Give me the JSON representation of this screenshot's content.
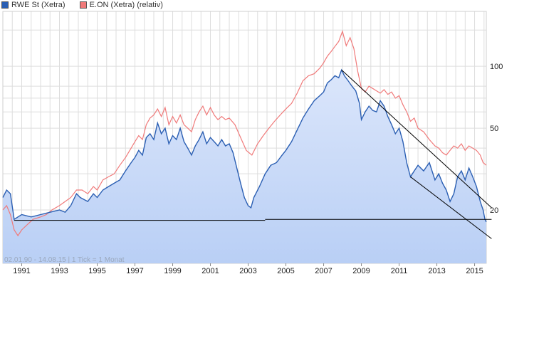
{
  "legend": {
    "series1_label": "RWE St (Xetra)",
    "series2_label": "E.ON (Xetra) (relativ)"
  },
  "footnote": "02.01.90 - 14.08.15  |  1 Tick = 1 Monat",
  "colors": {
    "rwe_line": "#2b5fb3",
    "rwe_fill_top": "#dbe6fb",
    "rwe_fill_bottom": "#b9cff5",
    "eon_line": "#f07a7a",
    "grid": "#dddddd",
    "trend": "#000000"
  },
  "chart_data": {
    "type": "line",
    "title": "",
    "xlabel": "",
    "ylabel": "",
    "y_scale": "log",
    "xlim": [
      1990.0,
      2015.62
    ],
    "ylim": [
      11,
      185
    ],
    "x_ticks": [
      "1991",
      "1993",
      "1995",
      "1997",
      "1999",
      "2001",
      "2003",
      "2005",
      "2007",
      "2009",
      "2011",
      "2013",
      "2015"
    ],
    "y_ticks": [
      {
        "value": 100,
        "label": "100"
      },
      {
        "value": 50,
        "label": "50"
      },
      {
        "value": 20,
        "label": "20"
      }
    ],
    "grid": true,
    "legend_position": "top-left",
    "series": [
      {
        "name": "RWE St (Xetra)",
        "points": [
          [
            1990.0,
            23
          ],
          [
            1990.2,
            25
          ],
          [
            1990.4,
            24
          ],
          [
            1990.6,
            18
          ],
          [
            1990.8,
            18.5
          ],
          [
            1991.0,
            19
          ],
          [
            1991.5,
            18.5
          ],
          [
            1992.0,
            19
          ],
          [
            1992.5,
            19.5
          ],
          [
            1993.0,
            20
          ],
          [
            1993.3,
            19.5
          ],
          [
            1993.6,
            21
          ],
          [
            1993.9,
            24
          ],
          [
            1994.1,
            23
          ],
          [
            1994.5,
            22
          ],
          [
            1994.8,
            24
          ],
          [
            1995.0,
            23
          ],
          [
            1995.3,
            25
          ],
          [
            1995.6,
            26
          ],
          [
            1995.9,
            27
          ],
          [
            1996.2,
            28
          ],
          [
            1996.5,
            31
          ],
          [
            1996.8,
            34
          ],
          [
            1997.0,
            36
          ],
          [
            1997.2,
            39
          ],
          [
            1997.4,
            37
          ],
          [
            1997.6,
            45
          ],
          [
            1997.8,
            47
          ],
          [
            1998.0,
            44
          ],
          [
            1998.2,
            53
          ],
          [
            1998.4,
            47
          ],
          [
            1998.6,
            50
          ],
          [
            1998.8,
            42
          ],
          [
            1999.0,
            46
          ],
          [
            1999.2,
            44
          ],
          [
            1999.4,
            50
          ],
          [
            1999.6,
            43
          ],
          [
            1999.8,
            40
          ],
          [
            2000.0,
            37
          ],
          [
            2000.2,
            41
          ],
          [
            2000.4,
            44
          ],
          [
            2000.6,
            48
          ],
          [
            2000.8,
            42
          ],
          [
            2001.0,
            45
          ],
          [
            2001.2,
            43
          ],
          [
            2001.4,
            41
          ],
          [
            2001.6,
            44
          ],
          [
            2001.8,
            41
          ],
          [
            2002.0,
            42
          ],
          [
            2002.2,
            38
          ],
          [
            2002.4,
            32
          ],
          [
            2002.6,
            27
          ],
          [
            2002.8,
            23
          ],
          [
            2003.0,
            21
          ],
          [
            2003.15,
            20.5
          ],
          [
            2003.3,
            23
          ],
          [
            2003.6,
            26
          ],
          [
            2003.9,
            30
          ],
          [
            2004.2,
            33
          ],
          [
            2004.5,
            34
          ],
          [
            2004.8,
            37
          ],
          [
            2005.0,
            39
          ],
          [
            2005.3,
            43
          ],
          [
            2005.6,
            49
          ],
          [
            2005.9,
            56
          ],
          [
            2006.2,
            62
          ],
          [
            2006.5,
            68
          ],
          [
            2006.8,
            72
          ],
          [
            2007.0,
            75
          ],
          [
            2007.2,
            83
          ],
          [
            2007.4,
            86
          ],
          [
            2007.6,
            90
          ],
          [
            2007.8,
            88
          ],
          [
            2007.95,
            96
          ],
          [
            2008.1,
            90
          ],
          [
            2008.3,
            85
          ],
          [
            2008.5,
            80
          ],
          [
            2008.7,
            76
          ],
          [
            2008.9,
            66
          ],
          [
            2009.0,
            55
          ],
          [
            2009.2,
            60
          ],
          [
            2009.4,
            64
          ],
          [
            2009.6,
            61
          ],
          [
            2009.8,
            60
          ],
          [
            2010.0,
            68
          ],
          [
            2010.2,
            64
          ],
          [
            2010.4,
            57
          ],
          [
            2010.6,
            52
          ],
          [
            2010.8,
            47
          ],
          [
            2011.0,
            50
          ],
          [
            2011.2,
            43
          ],
          [
            2011.4,
            34
          ],
          [
            2011.6,
            29
          ],
          [
            2011.8,
            31
          ],
          [
            2012.0,
            33
          ],
          [
            2012.3,
            31
          ],
          [
            2012.6,
            34
          ],
          [
            2012.9,
            28
          ],
          [
            2013.1,
            30
          ],
          [
            2013.3,
            27
          ],
          [
            2013.5,
            25
          ],
          [
            2013.7,
            22
          ],
          [
            2013.9,
            24
          ],
          [
            2014.1,
            29
          ],
          [
            2014.3,
            31
          ],
          [
            2014.5,
            28
          ],
          [
            2014.7,
            32
          ],
          [
            2014.9,
            29
          ],
          [
            2015.1,
            26
          ],
          [
            2015.3,
            22
          ],
          [
            2015.45,
            20
          ],
          [
            2015.55,
            18
          ],
          [
            2015.62,
            17.5
          ]
        ]
      },
      {
        "name": "E.ON (Xetra) (relativ)",
        "points": [
          [
            1990.0,
            20
          ],
          [
            1990.2,
            21
          ],
          [
            1990.4,
            19
          ],
          [
            1990.6,
            16
          ],
          [
            1990.8,
            15
          ],
          [
            1991.0,
            16
          ],
          [
            1991.3,
            17
          ],
          [
            1991.6,
            18
          ],
          [
            1992.0,
            18.5
          ],
          [
            1992.3,
            19
          ],
          [
            1992.6,
            20
          ],
          [
            1993.0,
            21
          ],
          [
            1993.3,
            22
          ],
          [
            1993.6,
            23
          ],
          [
            1993.9,
            25
          ],
          [
            1994.2,
            25
          ],
          [
            1994.5,
            24
          ],
          [
            1994.8,
            26
          ],
          [
            1995.0,
            25
          ],
          [
            1995.3,
            28
          ],
          [
            1995.6,
            29
          ],
          [
            1995.9,
            30
          ],
          [
            1996.2,
            33
          ],
          [
            1996.5,
            36
          ],
          [
            1996.8,
            40
          ],
          [
            1997.0,
            43
          ],
          [
            1997.2,
            46
          ],
          [
            1997.4,
            44
          ],
          [
            1997.6,
            52
          ],
          [
            1997.8,
            56
          ],
          [
            1998.0,
            58
          ],
          [
            1998.2,
            62
          ],
          [
            1998.4,
            57
          ],
          [
            1998.6,
            63
          ],
          [
            1998.8,
            52
          ],
          [
            1999.0,
            57
          ],
          [
            1999.2,
            53
          ],
          [
            1999.4,
            58
          ],
          [
            1999.6,
            52
          ],
          [
            1999.8,
            50
          ],
          [
            2000.0,
            48
          ],
          [
            2000.2,
            55
          ],
          [
            2000.4,
            60
          ],
          [
            2000.6,
            64
          ],
          [
            2000.8,
            58
          ],
          [
            2001.0,
            63
          ],
          [
            2001.2,
            58
          ],
          [
            2001.4,
            55
          ],
          [
            2001.6,
            57
          ],
          [
            2001.8,
            55
          ],
          [
            2002.0,
            56
          ],
          [
            2002.3,
            52
          ],
          [
            2002.6,
            45
          ],
          [
            2002.9,
            39
          ],
          [
            2003.2,
            37
          ],
          [
            2003.5,
            42
          ],
          [
            2003.8,
            46
          ],
          [
            2004.1,
            50
          ],
          [
            2004.4,
            54
          ],
          [
            2004.7,
            58
          ],
          [
            2005.0,
            62
          ],
          [
            2005.3,
            66
          ],
          [
            2005.6,
            74
          ],
          [
            2005.9,
            85
          ],
          [
            2006.2,
            90
          ],
          [
            2006.5,
            92
          ],
          [
            2006.8,
            98
          ],
          [
            2007.0,
            104
          ],
          [
            2007.2,
            112
          ],
          [
            2007.4,
            118
          ],
          [
            2007.6,
            125
          ],
          [
            2007.8,
            132
          ],
          [
            2008.0,
            148
          ],
          [
            2008.2,
            126
          ],
          [
            2008.4,
            138
          ],
          [
            2008.6,
            122
          ],
          [
            2008.8,
            95
          ],
          [
            2009.0,
            78
          ],
          [
            2009.2,
            75
          ],
          [
            2009.4,
            80
          ],
          [
            2009.6,
            78
          ],
          [
            2009.8,
            76
          ],
          [
            2010.0,
            74
          ],
          [
            2010.2,
            77
          ],
          [
            2010.4,
            73
          ],
          [
            2010.6,
            75
          ],
          [
            2010.8,
            70
          ],
          [
            2011.0,
            72
          ],
          [
            2011.2,
            65
          ],
          [
            2011.4,
            60
          ],
          [
            2011.6,
            54
          ],
          [
            2011.8,
            56
          ],
          [
            2012.0,
            50
          ],
          [
            2012.3,
            48
          ],
          [
            2012.6,
            44
          ],
          [
            2012.9,
            41
          ],
          [
            2013.1,
            40
          ],
          [
            2013.3,
            38
          ],
          [
            2013.5,
            37
          ],
          [
            2013.7,
            39
          ],
          [
            2013.9,
            41
          ],
          [
            2014.1,
            40
          ],
          [
            2014.3,
            42
          ],
          [
            2014.5,
            39
          ],
          [
            2014.7,
            41
          ],
          [
            2014.9,
            40
          ],
          [
            2015.1,
            39
          ],
          [
            2015.3,
            37
          ],
          [
            2015.45,
            34
          ],
          [
            2015.62,
            33
          ]
        ]
      }
    ],
    "trend_lines": [
      {
        "from": [
          1990.6,
          17.8
        ],
        "to": [
          2003.9,
          17.8
        ]
      },
      {
        "from": [
          2003.9,
          18.0
        ],
        "to": [
          2015.9,
          18.0
        ]
      },
      {
        "from": [
          2007.95,
          96
        ],
        "to": [
          2015.9,
          20.5
        ]
      },
      {
        "from": [
          2011.6,
          29
        ],
        "to": [
          2015.9,
          14.5
        ]
      }
    ]
  }
}
